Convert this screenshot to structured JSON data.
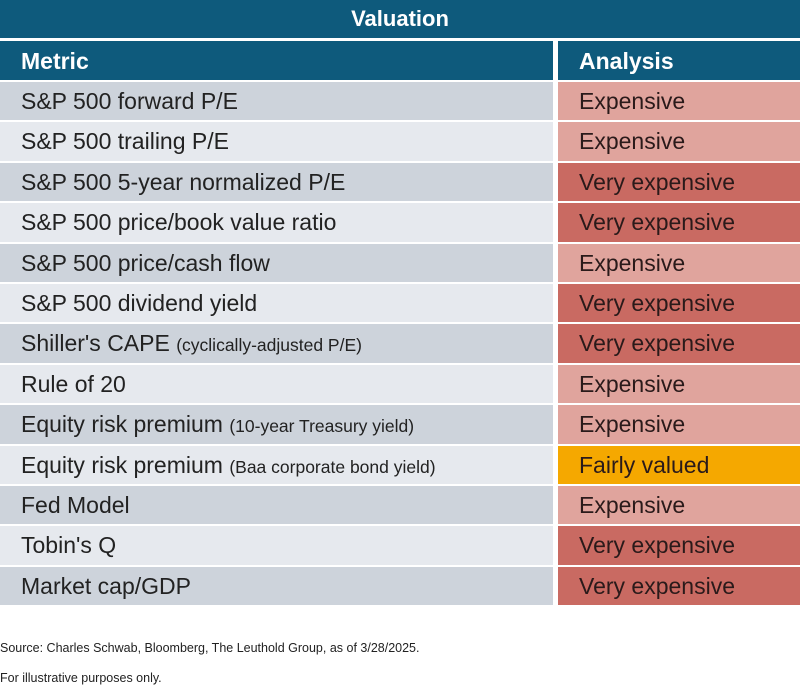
{
  "title": "Valuation",
  "headers": {
    "metric": "Metric",
    "analysis": "Analysis"
  },
  "colors": {
    "header": "#0e5a7c",
    "Expensive": "#e0a49d",
    "Very expensive": "#c96a62",
    "Fairly valued": "#f5a800"
  },
  "rows": [
    {
      "metric": "S&P 500 forward P/E",
      "note": "",
      "analysis": "Expensive"
    },
    {
      "metric": "S&P 500 trailing P/E",
      "note": "",
      "analysis": "Expensive"
    },
    {
      "metric": "S&P 500 5-year normalized P/E",
      "note": "",
      "analysis": "Very expensive"
    },
    {
      "metric": "S&P 500 price/book value ratio",
      "note": "",
      "analysis": "Very expensive"
    },
    {
      "metric": "S&P 500 price/cash flow",
      "note": "",
      "analysis": "Expensive"
    },
    {
      "metric": "S&P 500 dividend yield",
      "note": "",
      "analysis": "Very expensive"
    },
    {
      "metric": "Shiller's CAPE",
      "note": "(cyclically-adjusted P/E)",
      "analysis": "Very expensive"
    },
    {
      "metric": "Rule of 20",
      "note": "",
      "analysis": "Expensive"
    },
    {
      "metric": "Equity risk premium",
      "note": "(10-year Treasury yield)",
      "analysis": "Expensive"
    },
    {
      "metric": "Equity risk premium",
      "note": "(Baa corporate bond yield)",
      "analysis": "Fairly valued"
    },
    {
      "metric": "Fed Model",
      "note": "",
      "analysis": "Expensive"
    },
    {
      "metric": "Tobin's Q",
      "note": "",
      "analysis": "Very expensive"
    },
    {
      "metric": "Market cap/GDP",
      "note": "",
      "analysis": "Very expensive"
    }
  ],
  "footer": {
    "source": "Source: Charles Schwab, Bloomberg, The Leuthold Group, as of 3/28/2025.",
    "disclaimer": "For illustrative purposes only."
  }
}
